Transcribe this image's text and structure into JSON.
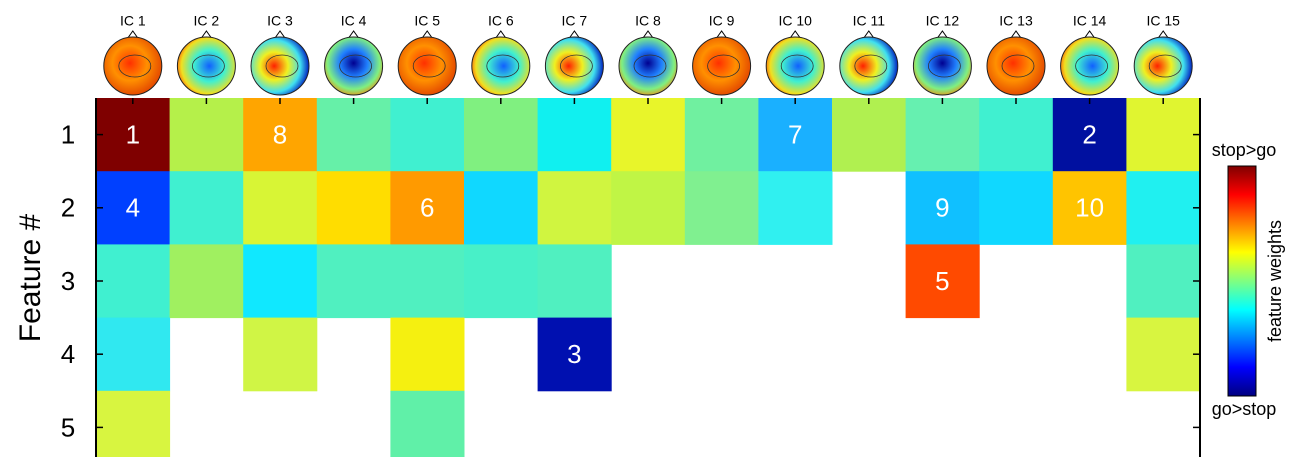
{
  "chart_data": {
    "type": "heatmap",
    "y_label": "Feature #",
    "columns": [
      "IC 1",
      "IC 2",
      "IC 3",
      "IC 4",
      "IC 5",
      "IC 6",
      "IC 7",
      "IC 8",
      "IC 9",
      "IC 10",
      "IC 11",
      "IC 12",
      "IC 13",
      "IC 14",
      "IC 15"
    ],
    "rows": [
      1,
      2,
      3,
      4,
      5
    ],
    "colors": [
      [
        "#7f0000",
        "#b5f04a",
        "#ffa500",
        "#66f0a8",
        "#40f0d0",
        "#80f080",
        "#10f0f0",
        "#e8f52a",
        "#70f0a0",
        "#1ab0ff",
        "#b0f050",
        "#66f0b0",
        "#40f0d0",
        "#0010a0",
        "#e0f530"
      ],
      [
        "#0040ff",
        "#40f0d0",
        "#d8f535",
        "#ffdd00",
        "#ff9a00",
        "#10d8ff",
        "#d0f540",
        "#c0f545",
        "#80f090",
        "#30f0f0",
        null,
        "#10c0ff",
        "#10d8ff",
        "#ffc400",
        "#20f0f0"
      ],
      [
        "#40f0d0",
        "#a0f060",
        "#10e8ff",
        "#50f0c0",
        "#50f0c0",
        "#48f0c8",
        "#50f0c0",
        null,
        null,
        null,
        null,
        "#ff4a00",
        null,
        null,
        "#50f0c0"
      ],
      [
        "#30e8f0",
        null,
        "#d0f545",
        null,
        "#f5f010",
        null,
        "#0010b0",
        null,
        null,
        null,
        null,
        null,
        null,
        null,
        "#d8f540"
      ],
      [
        "#d8f540",
        null,
        null,
        null,
        "#60f0a8",
        null,
        null,
        null,
        null,
        null,
        null,
        null,
        null,
        null,
        null
      ]
    ],
    "ranks": [
      [
        1,
        null,
        8,
        null,
        null,
        null,
        null,
        null,
        null,
        7,
        null,
        null,
        null,
        2,
        null
      ],
      [
        4,
        null,
        null,
        null,
        6,
        null,
        null,
        null,
        null,
        null,
        null,
        9,
        null,
        10,
        null
      ],
      [
        null,
        null,
        null,
        null,
        null,
        null,
        null,
        null,
        null,
        null,
        null,
        5,
        null,
        null,
        null
      ],
      [
        null,
        null,
        null,
        null,
        null,
        null,
        3,
        null,
        null,
        null,
        null,
        null,
        null,
        null,
        null
      ],
      [
        null,
        null,
        null,
        null,
        null,
        null,
        null,
        null,
        null,
        null,
        null,
        null,
        null,
        null,
        null
      ]
    ],
    "colorbar": {
      "label": "feature weights",
      "top": "stop>go",
      "bottom": "go>stop",
      "colors": [
        "#800000",
        "#ff0000",
        "#ff8000",
        "#ffff00",
        "#80ff80",
        "#00ffff",
        "#0080ff",
        "#0000ff",
        "#000080"
      ]
    }
  }
}
